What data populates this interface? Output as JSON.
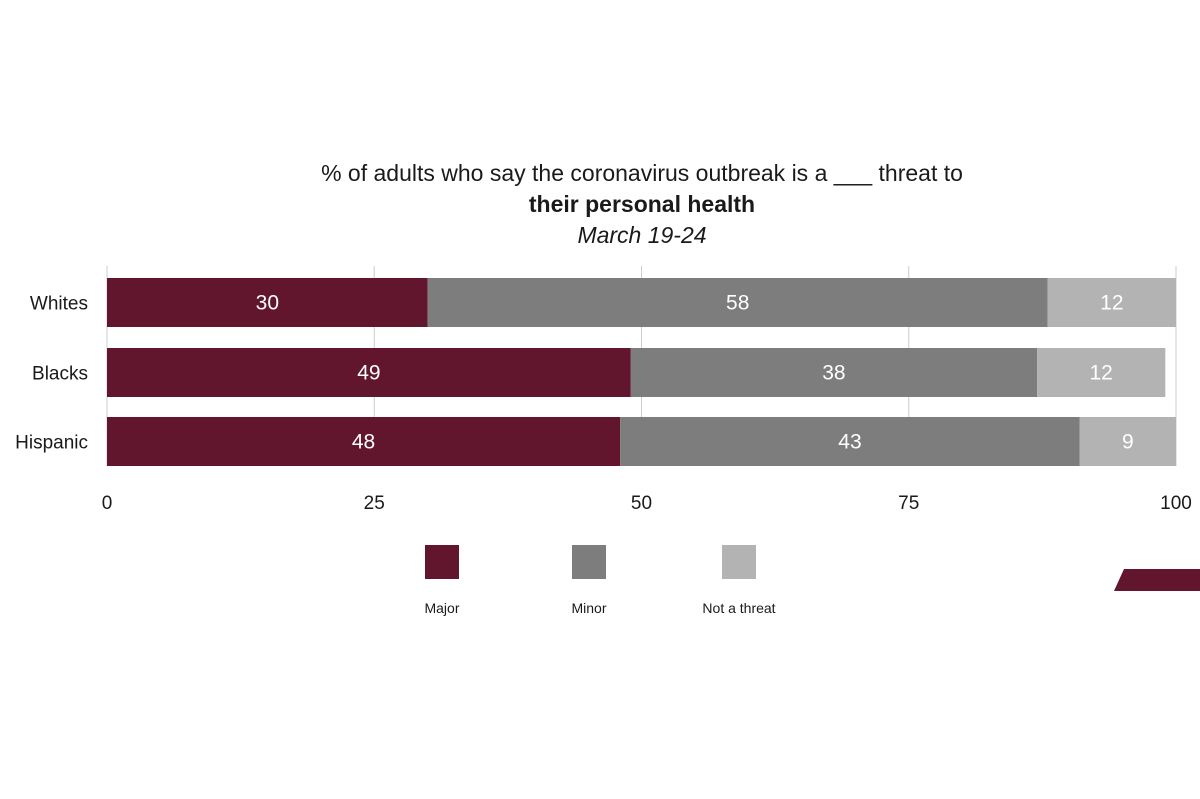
{
  "chart_data": {
    "type": "bar",
    "orientation": "horizontal",
    "stacked": true,
    "title": "% of adults who say the coronavirus outbreak is a ___ threat to",
    "subtitle": "their personal health",
    "date_label": "March 19-24",
    "categories": [
      "Whites",
      "Blacks",
      "Hispanic"
    ],
    "series": [
      {
        "name": "Major",
        "values": [
          30,
          49,
          48
        ],
        "color": "#62162e"
      },
      {
        "name": "Minor",
        "values": [
          58,
          38,
          43
        ],
        "color": "#7d7d7d"
      },
      {
        "name": "Not a threat",
        "values": [
          12,
          12,
          9
        ],
        "color": "#b3b3b3"
      }
    ],
    "xlim": [
      0,
      100
    ],
    "xticks": [
      0,
      25,
      50,
      75,
      100
    ],
    "grid": true,
    "legend": "bottom"
  },
  "colors": {
    "accent": "#62162e",
    "gridline": "#cccccc"
  }
}
